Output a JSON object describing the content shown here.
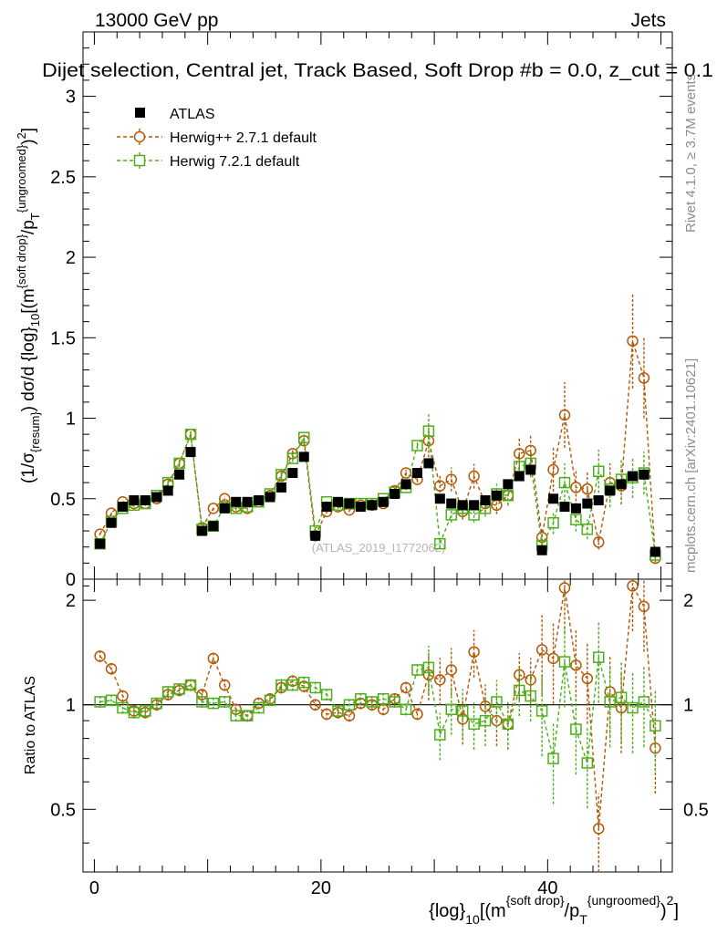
{
  "header": {
    "energy_label": "13000 GeV pp",
    "process_label": "Jets",
    "plot_title": "Dijet selection, Central jet, Track Based, Soft Drop #b = 0.0, z_cut = 0.1",
    "side_label_top": "Rivet 4.1.0, ≥ 3.7M events",
    "side_label_bottom": "mcplots.cern.ch [arXiv:2401.10621]",
    "watermark": "(ATLAS_2019_I1772062)"
  },
  "chart_data": [
    {
      "type": "scatter",
      "title": "Dijet selection, Central jet, Track Based, Soft Drop #b = 0.0, z_cut = 0.1",
      "ylabel": "(1/σ_{resum}) dσ/d {log}_10[(m^{soft drop}/p_T^{ungroomed})^2]",
      "xlabel": "{log}_10[(m^{soft drop}/p_T^{ungroomed})^2]",
      "xlim": [
        -1,
        51
      ],
      "ylim": [
        0,
        3.4
      ],
      "yticks": [
        0,
        0.5,
        1,
        1.5,
        2,
        2.5,
        3
      ],
      "ytick_labels": [
        "0",
        "0.5",
        "1",
        "1.5",
        "2",
        "2.5",
        "3"
      ],
      "legend": {
        "position": "top-left",
        "entries": [
          "ATLAS",
          "Herwig++ 2.7.1 default",
          "Herwig 7.2.1 default"
        ]
      },
      "x": [
        0.5,
        1.5,
        2.5,
        3.5,
        4.5,
        5.5,
        6.5,
        7.5,
        8.5,
        9.5,
        10.5,
        11.5,
        12.5,
        13.5,
        14.5,
        15.5,
        16.5,
        17.5,
        18.5,
        19.5,
        20.5,
        21.5,
        22.5,
        23.5,
        24.5,
        25.5,
        26.5,
        27.5,
        28.5,
        29.5,
        30.5,
        31.5,
        32.5,
        33.5,
        34.5,
        35.5,
        36.5,
        37.5,
        38.5,
        39.5,
        40.5,
        41.5,
        42.5,
        43.5,
        44.5,
        45.5,
        46.5,
        47.5,
        48.5,
        49.5
      ],
      "series": [
        {
          "name": "ATLAS",
          "values": [
            0.22,
            0.35,
            0.45,
            0.49,
            0.49,
            0.51,
            0.55,
            0.65,
            0.79,
            0.3,
            0.33,
            0.44,
            0.48,
            0.48,
            0.49,
            0.51,
            0.57,
            0.66,
            0.76,
            0.27,
            0.45,
            0.48,
            0.47,
            0.45,
            0.46,
            0.48,
            0.53,
            0.59,
            0.66,
            0.72,
            0.5,
            0.47,
            0.46,
            0.46,
            0.49,
            0.52,
            0.59,
            0.64,
            0.68,
            0.18,
            0.5,
            0.45,
            0.44,
            0.47,
            0.49,
            0.55,
            0.59,
            0.64,
            0.65,
            0.17
          ]
        },
        {
          "name": "Herwig++ 2.7.1 default",
          "values": [
            0.28,
            0.41,
            0.48,
            0.47,
            0.47,
            0.5,
            0.59,
            0.72,
            0.9,
            0.32,
            0.44,
            0.5,
            0.45,
            0.44,
            0.48,
            0.52,
            0.64,
            0.78,
            0.86,
            0.27,
            0.42,
            0.45,
            0.43,
            0.46,
            0.46,
            0.47,
            0.55,
            0.66,
            0.62,
            0.86,
            0.58,
            0.62,
            0.42,
            0.64,
            0.47,
            0.46,
            0.52,
            0.78,
            0.8,
            0.26,
            0.68,
            1.02,
            0.57,
            0.56,
            0.23,
            0.6,
            0.58,
            1.48,
            1.25,
            0.13
          ]
        },
        {
          "name": "Herwig 7.2.1 default",
          "values": [
            0.22,
            0.36,
            0.44,
            0.46,
            0.47,
            0.52,
            0.6,
            0.72,
            0.9,
            0.31,
            0.33,
            0.45,
            0.44,
            0.45,
            0.48,
            0.53,
            0.65,
            0.75,
            0.88,
            0.3,
            0.48,
            0.46,
            0.47,
            0.47,
            0.47,
            0.5,
            0.54,
            0.57,
            0.83,
            0.92,
            0.22,
            0.4,
            0.44,
            0.4,
            0.44,
            0.53,
            0.52,
            0.7,
            0.72,
            0.21,
            0.35,
            0.6,
            0.37,
            0.31,
            0.67,
            0.56,
            0.62,
            0.63,
            0.66,
            0.15
          ]
        }
      ]
    },
    {
      "type": "scatter",
      "title": "",
      "ylabel": "Ratio to ATLAS",
      "xlabel": "{log}_10[(m^{soft drop}/p_T^{ungroomed})^2]",
      "xlim": [
        -1,
        51
      ],
      "ylim": [
        0.33,
        2.3
      ],
      "xticks": [
        0,
        20,
        40
      ],
      "xtick_labels": [
        "0",
        "20",
        "40"
      ],
      "yticks": [
        0.5,
        1,
        2
      ],
      "ytick_labels": [
        "0.5",
        "1",
        "2"
      ],
      "x": [
        0.5,
        1.5,
        2.5,
        3.5,
        4.5,
        5.5,
        6.5,
        7.5,
        8.5,
        9.5,
        10.5,
        11.5,
        12.5,
        13.5,
        14.5,
        15.5,
        16.5,
        17.5,
        18.5,
        19.5,
        20.5,
        21.5,
        22.5,
        23.5,
        24.5,
        25.5,
        26.5,
        27.5,
        28.5,
        29.5,
        30.5,
        31.5,
        32.5,
        33.5,
        34.5,
        35.5,
        36.5,
        37.5,
        38.5,
        39.5,
        40.5,
        41.5,
        42.5,
        43.5,
        44.5,
        45.5,
        46.5,
        47.5,
        48.5,
        49.5
      ],
      "series": [
        {
          "name": "Herwig++ 2.7.1 default",
          "values": [
            1.38,
            1.27,
            1.06,
            0.96,
            0.95,
            1.0,
            1.07,
            1.1,
            1.14,
            1.07,
            1.36,
            1.14,
            0.97,
            0.93,
            1.01,
            1.04,
            1.12,
            1.17,
            1.13,
            1.0,
            0.94,
            0.95,
            0.93,
            1.01,
            1.0,
            0.97,
            1.04,
            1.12,
            0.94,
            1.22,
            1.18,
            1.26,
            0.91,
            1.42,
            0.99,
            0.9,
            0.88,
            1.22,
            1.18,
            1.44,
            1.36,
            2.17,
            1.3,
            1.19,
            0.44,
            1.09,
            0.98,
            2.2,
            1.92,
            0.75
          ]
        },
        {
          "name": "Herwig 7.2.1 default",
          "values": [
            1.02,
            1.03,
            0.98,
            0.95,
            0.96,
            1.01,
            1.09,
            1.11,
            1.14,
            1.02,
            1.01,
            1.02,
            0.93,
            0.93,
            0.98,
            1.03,
            1.14,
            1.14,
            1.16,
            1.12,
            1.07,
            0.96,
            1.0,
            1.04,
            1.02,
            1.04,
            1.02,
            0.97,
            1.26,
            1.28,
            0.82,
            0.97,
            0.96,
            0.88,
            0.9,
            1.02,
            0.88,
            1.1,
            1.06,
            0.96,
            0.7,
            1.33,
            0.85,
            0.68,
            1.37,
            1.02,
            1.05,
            0.98,
            1.02,
            0.87
          ]
        }
      ]
    }
  ]
}
